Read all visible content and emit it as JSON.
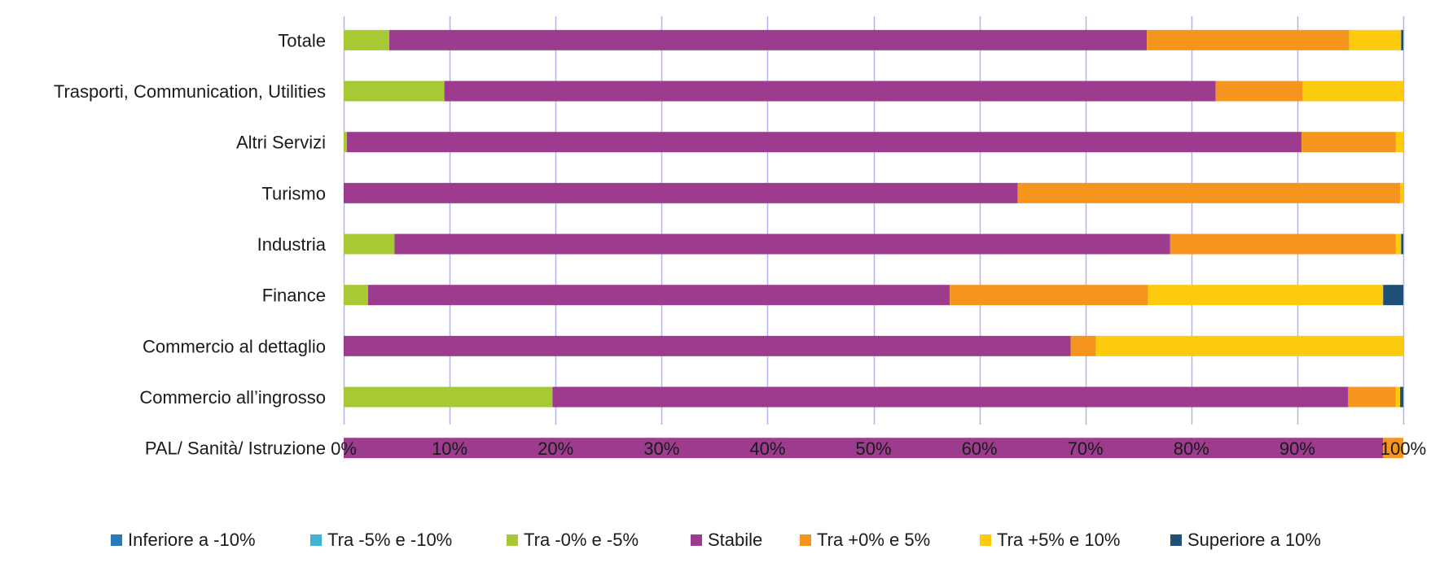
{
  "chart_data": {
    "type": "bar",
    "orientation": "horizontal",
    "stacked": "percent",
    "categories": [
      "Totale",
      "Trasporti, Communication, Utilities",
      "Altri Servizi",
      "Turismo",
      "Industria",
      "Finance",
      "Commercio al dettaglio",
      "Commercio all’ingrosso",
      "PAL/ Sanità/ Istruzione"
    ],
    "series": [
      {
        "name": "Inferiore a -10%",
        "color": "#2a7ab9",
        "values": [
          0,
          0,
          0,
          0,
          0,
          0,
          0,
          0,
          0
        ]
      },
      {
        "name": "Tra -5% e -10%",
        "color": "#3fb3d3",
        "values": [
          0,
          0,
          0,
          0,
          0,
          0,
          0,
          0,
          0
        ]
      },
      {
        "name": "Tra -0% e -5%",
        "color": "#a6c934",
        "values": [
          4.3,
          9.5,
          0.3,
          0,
          4.8,
          2.3,
          0,
          19.7,
          0
        ]
      },
      {
        "name": "Stabile",
        "color": "#9d3c8f",
        "values": [
          71.5,
          72.8,
          90.1,
          63.6,
          73.2,
          54.9,
          68.6,
          75.1,
          98.1
        ]
      },
      {
        "name": "Tra +0% e 5%",
        "color": "#f6951e",
        "values": [
          19.1,
          8.2,
          8.9,
          36.1,
          21.3,
          18.7,
          2.4,
          4.5,
          1.9
        ]
      },
      {
        "name": "Tra +5% e 10%",
        "color": "#fccb0e",
        "values": [
          4.9,
          9.5,
          0.7,
          0.3,
          0.5,
          22.2,
          29.0,
          0.4,
          0
        ]
      },
      {
        "name": "Superiore a 10%",
        "color": "#1f4e79",
        "values": [
          0.2,
          0,
          0,
          0,
          0.2,
          1.9,
          0,
          0.3,
          0
        ]
      }
    ],
    "xlim": [
      0,
      100
    ],
    "x_ticks": [
      "0%",
      "10%",
      "20%",
      "30%",
      "40%",
      "50%",
      "60%",
      "70%",
      "80%",
      "90%",
      "100%"
    ],
    "grid": "vertical",
    "legend_position": "bottom",
    "title": "",
    "xlabel": "",
    "ylabel": ""
  }
}
